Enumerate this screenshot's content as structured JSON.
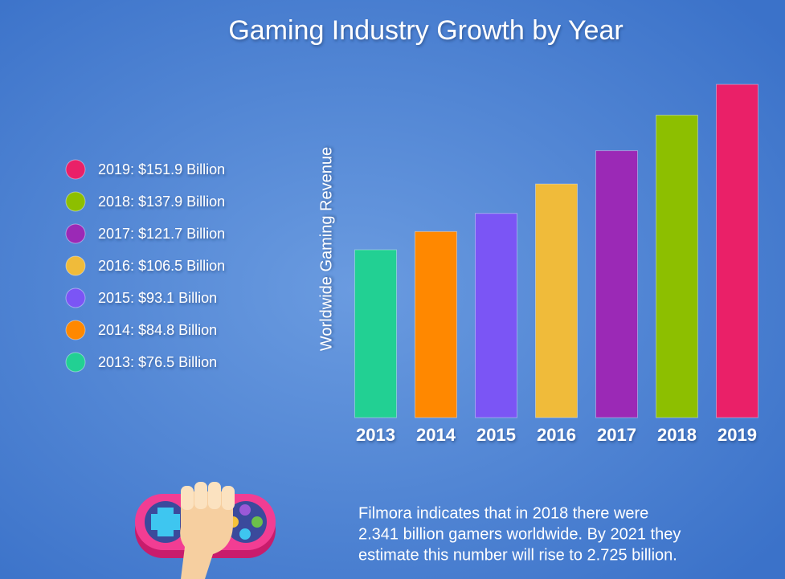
{
  "chart_data": {
    "type": "bar",
    "title": "Gaming Industry Growth by Year",
    "y_label": "Worldwide Gaming Revenue",
    "categories": [
      "2013",
      "2014",
      "2015",
      "2016",
      "2017",
      "2018",
      "2019"
    ],
    "values": [
      76.5,
      84.8,
      93.1,
      106.5,
      121.7,
      137.9,
      151.9
    ],
    "value_labels": [
      "2013: $76.5 Billion",
      "2014: $84.8 Billion",
      "2015: $93.1 Billion",
      "2016: $106.5 Billion",
      "2017: $121.7 Billion",
      "2018: $137.9 Billion",
      "2019: $151.9 Billion"
    ],
    "colors": [
      "#22d093",
      "#ff8800",
      "#7b55f5",
      "#f0bb3a",
      "#9b29b6",
      "#8dbf00",
      "#ea2068"
    ],
    "ylim": [
      0,
      160
    ],
    "grid": false,
    "note": [
      "Filmora indicates that in 2018 there were",
      "2.341 billion gamers worldwide. By 2021 they",
      "estimate this number will rise to 2.725 billion."
    ]
  }
}
